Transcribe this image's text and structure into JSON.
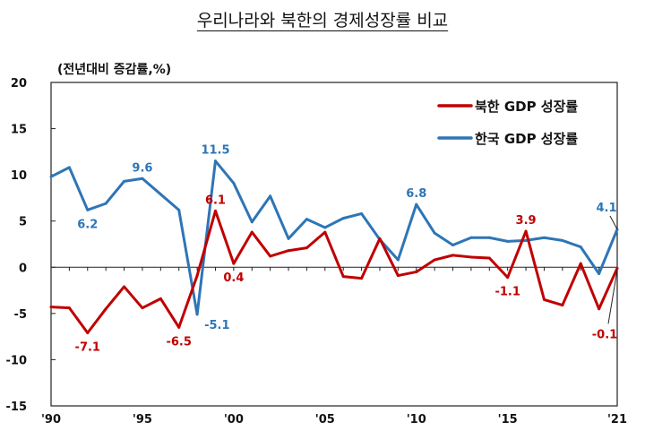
{
  "chart_data": {
    "type": "line",
    "title": "우리나라와 북한의 경제성장률 비교",
    "ylabel": "(전년대비 증감률,%)",
    "xlabel": "",
    "ylim": [
      -15,
      20
    ],
    "yticks": [
      20,
      15,
      10,
      5,
      0,
      -5,
      -10,
      -15
    ],
    "x": [
      1990,
      1991,
      1992,
      1993,
      1994,
      1995,
      1996,
      1997,
      1998,
      1999,
      2000,
      2001,
      2002,
      2003,
      2004,
      2005,
      2006,
      2007,
      2008,
      2009,
      2010,
      2011,
      2012,
      2013,
      2014,
      2015,
      2016,
      2017,
      2018,
      2019,
      2020,
      2021
    ],
    "xticks": [
      {
        "year": 1990,
        "label": "'90"
      },
      {
        "year": 1995,
        "label": "'95"
      },
      {
        "year": 2000,
        "label": "'00"
      },
      {
        "year": 2005,
        "label": "'05"
      },
      {
        "year": 2010,
        "label": "'10"
      },
      {
        "year": 2015,
        "label": "'15"
      },
      {
        "year": 2021,
        "label": "'21"
      }
    ],
    "grid": false,
    "legend_position": "top-right",
    "series": [
      {
        "name": "북한 GDP 성장률",
        "color": "#c00000",
        "values": [
          -4.3,
          -4.4,
          -7.1,
          -4.5,
          -2.1,
          -4.4,
          -3.4,
          -6.5,
          -0.9,
          6.1,
          0.4,
          3.8,
          1.2,
          1.8,
          2.1,
          3.8,
          -1.0,
          -1.2,
          3.1,
          -0.9,
          -0.5,
          0.8,
          1.3,
          1.1,
          1.0,
          -1.1,
          3.9,
          -3.5,
          -4.1,
          0.4,
          -4.5,
          -0.1
        ],
        "data_labels": [
          {
            "year": 1992,
            "text": "-7.1",
            "pos": "below"
          },
          {
            "year": 1997,
            "text": "-6.5",
            "pos": "below"
          },
          {
            "year": 1999,
            "text": "6.1",
            "pos": "above"
          },
          {
            "year": 2000,
            "text": "0.4",
            "pos": "below"
          },
          {
            "year": 2015,
            "text": "-1.1",
            "pos": "below"
          },
          {
            "year": 2016,
            "text": "3.9",
            "pos": "above"
          },
          {
            "year": 2021,
            "text": "-0.1",
            "pos": "leader-below"
          }
        ]
      },
      {
        "name": "한국 GDP 성장률",
        "color": "#2e75b6",
        "values": [
          9.8,
          10.8,
          6.2,
          6.9,
          9.3,
          9.6,
          7.9,
          6.2,
          -5.1,
          11.5,
          9.1,
          4.9,
          7.7,
          3.1,
          5.2,
          4.3,
          5.3,
          5.8,
          3.0,
          0.8,
          6.8,
          3.7,
          2.4,
          3.2,
          3.2,
          2.8,
          2.9,
          3.2,
          2.9,
          2.2,
          -0.7,
          4.1
        ],
        "data_labels": [
          {
            "year": 1992,
            "text": "6.2",
            "pos": "below"
          },
          {
            "year": 1995,
            "text": "9.6",
            "pos": "above"
          },
          {
            "year": 1998,
            "text": "-5.1",
            "pos": "below-right"
          },
          {
            "year": 1999,
            "text": "11.5",
            "pos": "above"
          },
          {
            "year": 2010,
            "text": "6.8",
            "pos": "above"
          },
          {
            "year": 2021,
            "text": "4.1",
            "pos": "leader-above"
          }
        ]
      }
    ]
  }
}
